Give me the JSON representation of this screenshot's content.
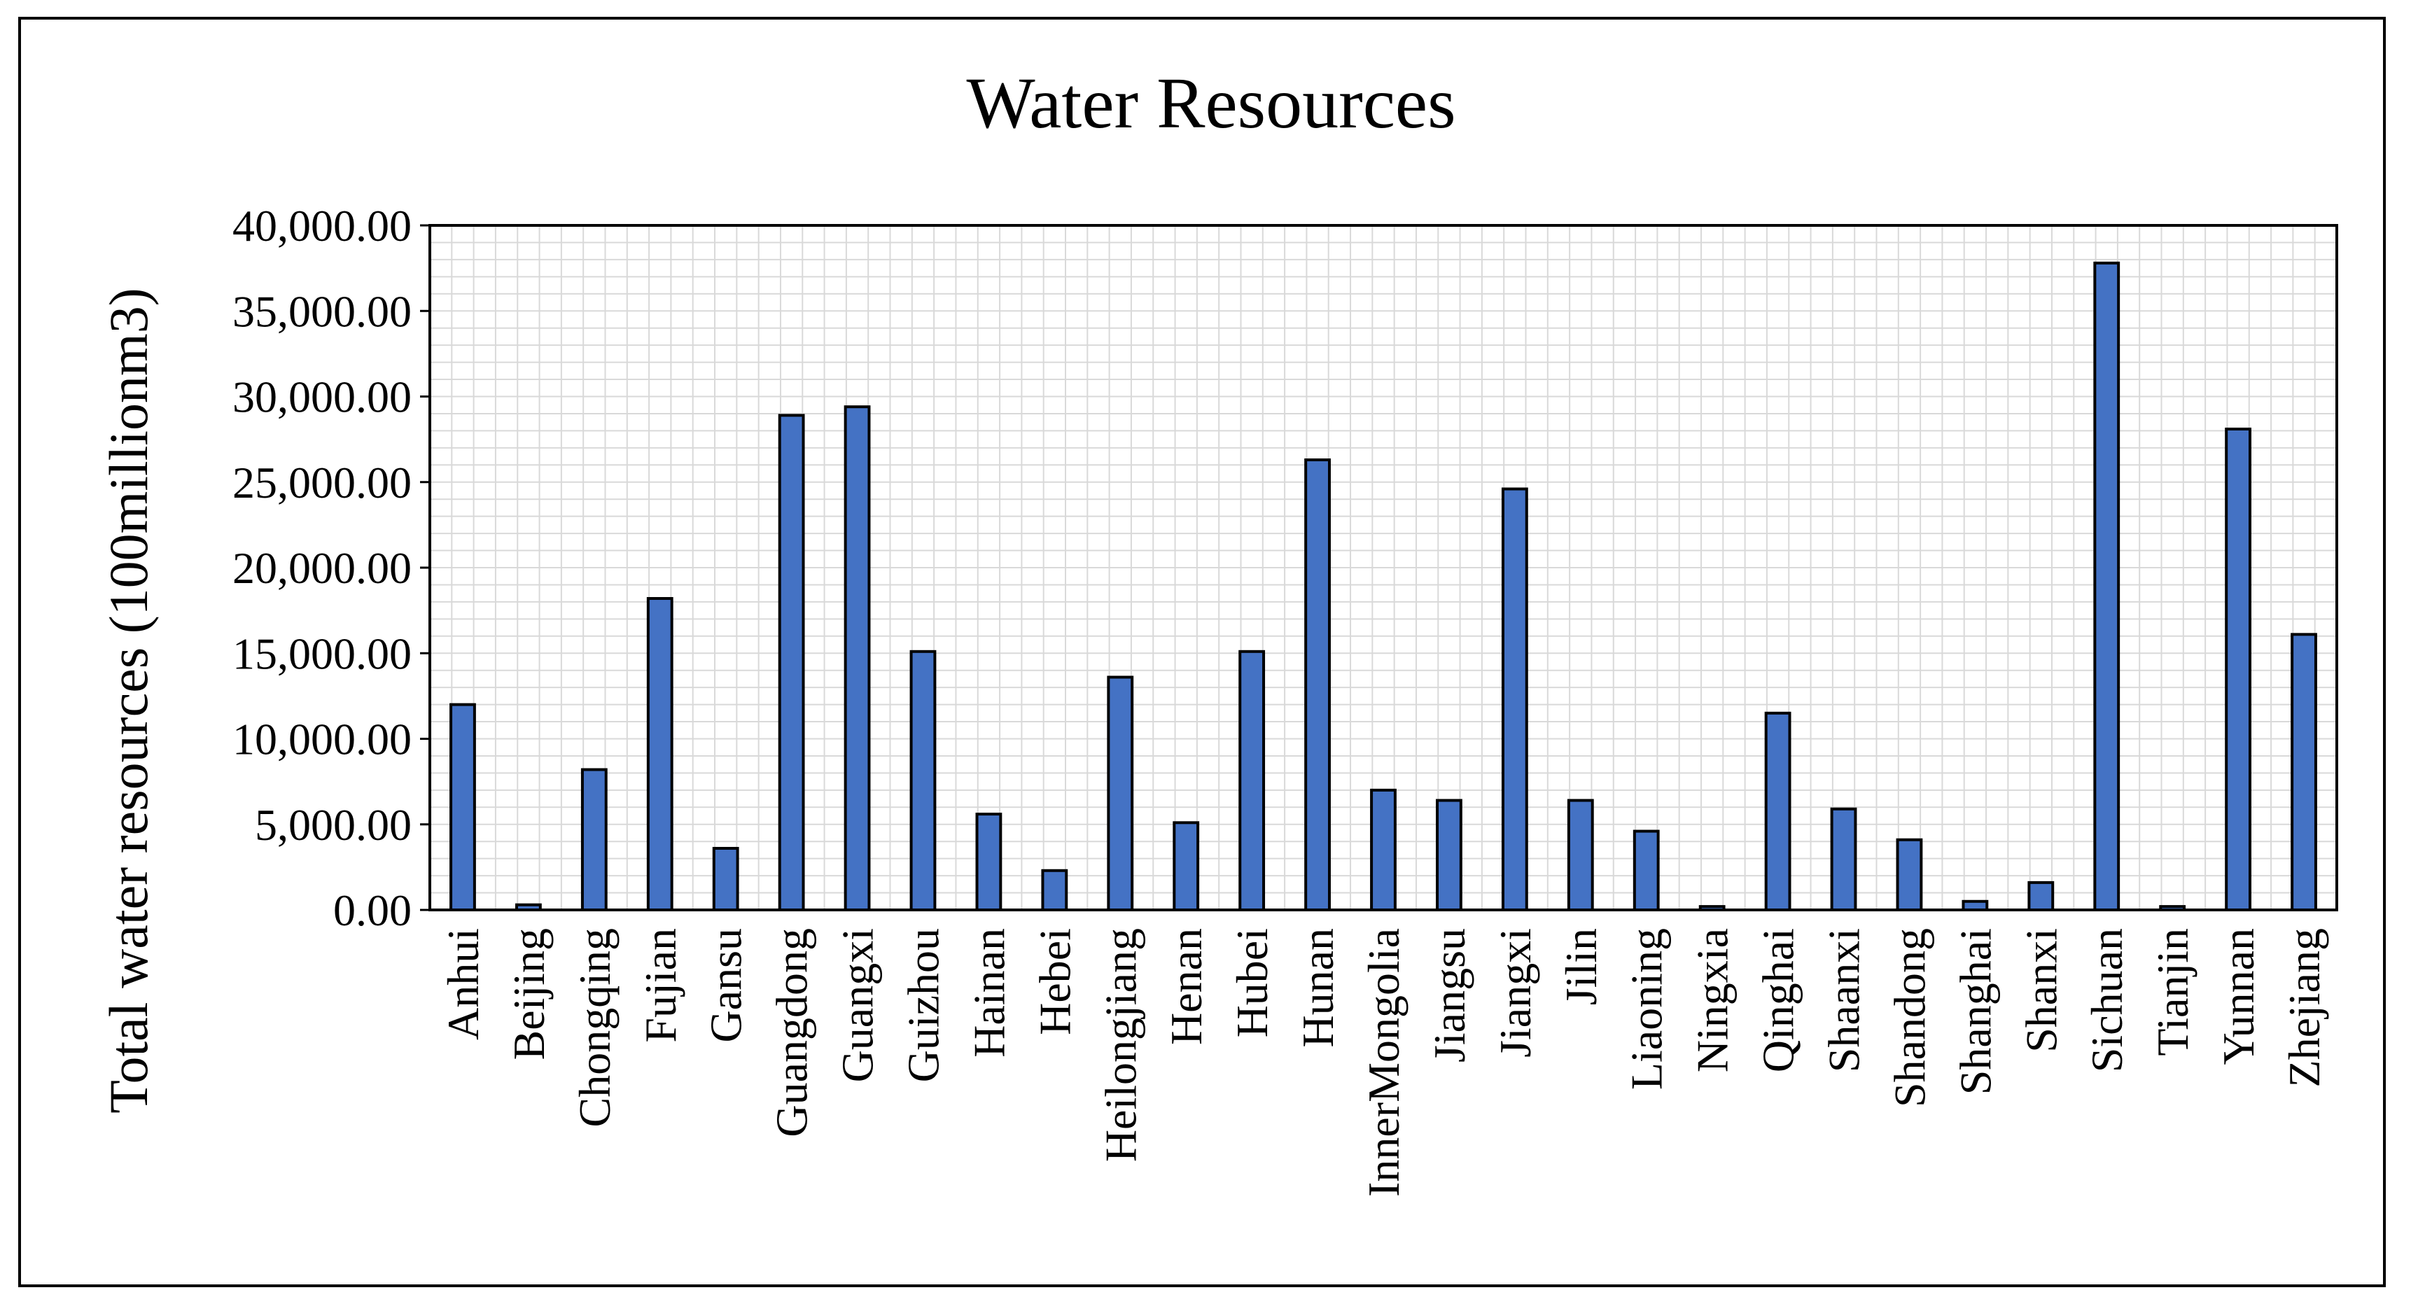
{
  "colors": {
    "bar_fill": "#4472c4",
    "bar_stroke": "#000000",
    "grid": "#d9d9d9",
    "axis": "#000000",
    "text": "#000000"
  },
  "chart_data": {
    "type": "bar",
    "title": "Water Resources",
    "xlabel": "",
    "ylabel": "Total water resources (100millionm3)",
    "ylim": [
      0,
      40000
    ],
    "yticks": [
      "0.00",
      "5,000.00",
      "10,000.00",
      "15,000.00",
      "20,000.00",
      "25,000.00",
      "30,000.00",
      "35,000.00",
      "40,000.00"
    ],
    "grid": true,
    "categories": [
      "Anhui",
      "Beijing",
      "Chongqing",
      "Fujian",
      "Gansu",
      "Guangdong",
      "Guangxi",
      "Guizhou",
      "Hainan",
      "Hebei",
      "Heilongjiang",
      "Henan",
      "Hubei",
      "Hunan",
      "InnerMongolia",
      "Jiangsu",
      "Jiangxi",
      "Jilin",
      "Liaoning",
      "Ningxia",
      "Qinghai",
      "Shaanxi",
      "Shandong",
      "Shanghai",
      "Shanxi",
      "Sichuan",
      "Tianjin",
      "Yunnan",
      "Zhejiang"
    ],
    "values": [
      12000,
      300,
      8200,
      18200,
      3600,
      28900,
      29400,
      15100,
      5600,
      2300,
      13600,
      5100,
      15100,
      26300,
      7000,
      6400,
      24600,
      6400,
      4600,
      200,
      11500,
      5900,
      4100,
      500,
      1600,
      37800,
      200,
      28100,
      16100
    ]
  }
}
